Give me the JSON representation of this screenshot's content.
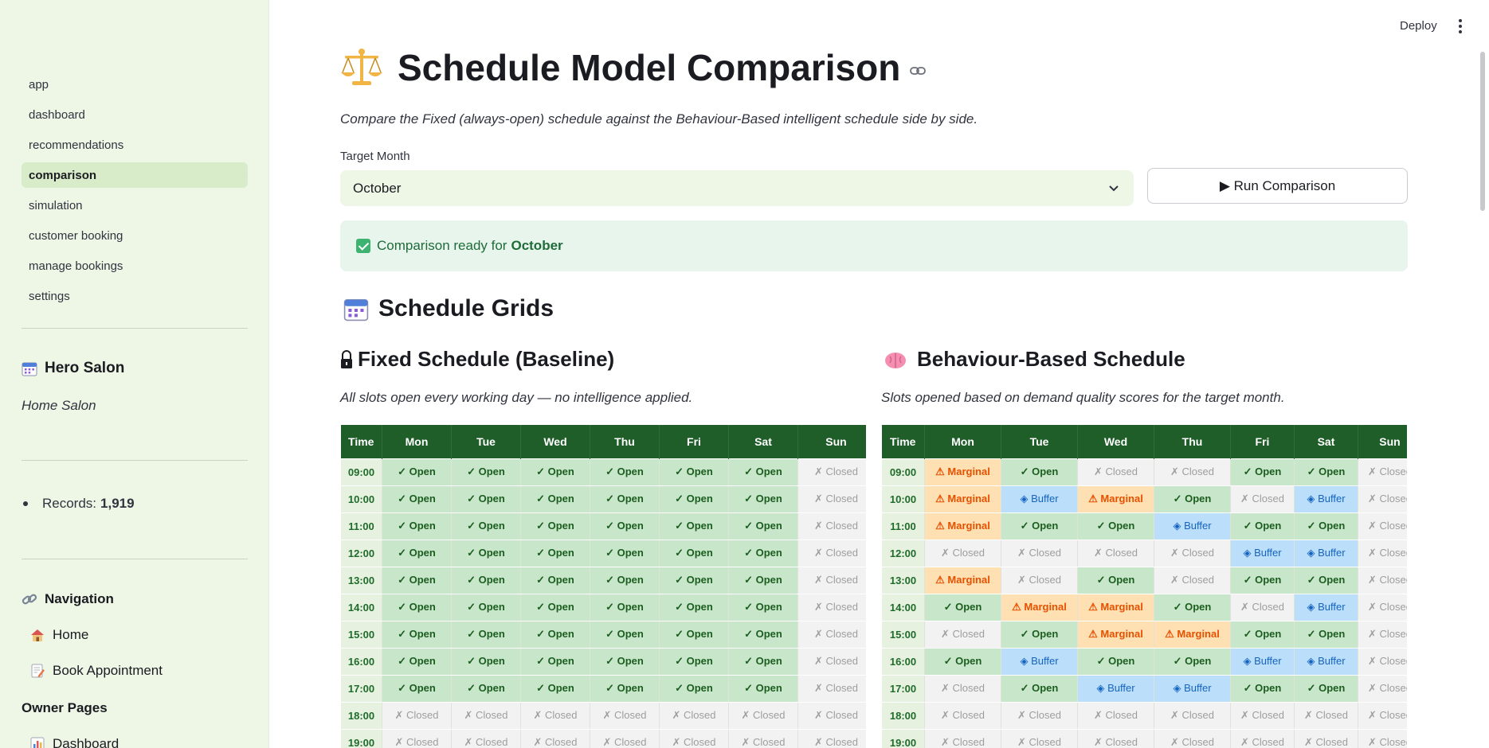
{
  "sidebar": {
    "pages": [
      {
        "label": "app",
        "active": false
      },
      {
        "label": "dashboard",
        "active": false
      },
      {
        "label": "recommendations",
        "active": false
      },
      {
        "label": "comparison",
        "active": true
      },
      {
        "label": "simulation",
        "active": false
      },
      {
        "label": "customer booking",
        "active": false
      },
      {
        "label": "manage bookings",
        "active": false
      },
      {
        "label": "settings",
        "active": false
      }
    ],
    "salon_name": "Hero Salon",
    "salon_subtitle": "Home Salon",
    "records_label": "Records:",
    "records_value": "1,919",
    "navigation_heading": "Navigation",
    "home_link": "Home",
    "book_link": "Book Appointment",
    "owner_heading": "Owner Pages",
    "dashboard_link": "Dashboard"
  },
  "topbar": {
    "deploy": "Deploy"
  },
  "main": {
    "title": "Schedule Model Comparison",
    "caption": "Compare the Fixed (always-open) schedule against the Behaviour-Based intelligent schedule side by side.",
    "month_label": "Target Month",
    "month_value": "October",
    "run_button": "▶ Run Comparison",
    "alert_text": "Comparison ready for",
    "alert_month": "October",
    "grids_heading": "Schedule Grids",
    "fixed": {
      "title": "Fixed Schedule (Baseline)",
      "subtitle": "All slots open every working day — no intelligence applied."
    },
    "behaviour": {
      "title": "Behaviour-Based Schedule",
      "subtitle": "Slots opened based on demand quality scores for the target month."
    }
  },
  "status_labels": {
    "Open": "✓ Open",
    "Closed": "✗ Closed",
    "Marginal": "⚠ Marginal",
    "Buffer": "◈ Buffer"
  },
  "grid_columns": [
    "Time",
    "Mon",
    "Tue",
    "Wed",
    "Thu",
    "Fri",
    "Sat",
    "Sun"
  ],
  "times": [
    "09:00",
    "10:00",
    "11:00",
    "12:00",
    "13:00",
    "14:00",
    "15:00",
    "16:00",
    "17:00",
    "18:00",
    "19:00"
  ],
  "fixed_grid": [
    [
      "Open",
      "Open",
      "Open",
      "Open",
      "Open",
      "Open",
      "Closed"
    ],
    [
      "Open",
      "Open",
      "Open",
      "Open",
      "Open",
      "Open",
      "Closed"
    ],
    [
      "Open",
      "Open",
      "Open",
      "Open",
      "Open",
      "Open",
      "Closed"
    ],
    [
      "Open",
      "Open",
      "Open",
      "Open",
      "Open",
      "Open",
      "Closed"
    ],
    [
      "Open",
      "Open",
      "Open",
      "Open",
      "Open",
      "Open",
      "Closed"
    ],
    [
      "Open",
      "Open",
      "Open",
      "Open",
      "Open",
      "Open",
      "Closed"
    ],
    [
      "Open",
      "Open",
      "Open",
      "Open",
      "Open",
      "Open",
      "Closed"
    ],
    [
      "Open",
      "Open",
      "Open",
      "Open",
      "Open",
      "Open",
      "Closed"
    ],
    [
      "Open",
      "Open",
      "Open",
      "Open",
      "Open",
      "Open",
      "Closed"
    ],
    [
      "Closed",
      "Closed",
      "Closed",
      "Closed",
      "Closed",
      "Closed",
      "Closed"
    ],
    [
      "Closed",
      "Closed",
      "Closed",
      "Closed",
      "Closed",
      "Closed",
      "Closed"
    ]
  ],
  "behaviour_grid": [
    [
      "Marginal",
      "Open",
      "Closed",
      "Closed",
      "Open",
      "Open",
      "Closed"
    ],
    [
      "Marginal",
      "Buffer",
      "Marginal",
      "Open",
      "Closed",
      "Buffer",
      "Closed"
    ],
    [
      "Marginal",
      "Open",
      "Open",
      "Buffer",
      "Open",
      "Open",
      "Closed"
    ],
    [
      "Closed",
      "Closed",
      "Closed",
      "Closed",
      "Buffer",
      "Buffer",
      "Closed"
    ],
    [
      "Marginal",
      "Closed",
      "Open",
      "Closed",
      "Open",
      "Open",
      "Closed"
    ],
    [
      "Open",
      "Marginal",
      "Marginal",
      "Open",
      "Closed",
      "Buffer",
      "Closed"
    ],
    [
      "Closed",
      "Open",
      "Marginal",
      "Marginal",
      "Open",
      "Open",
      "Closed"
    ],
    [
      "Open",
      "Buffer",
      "Open",
      "Open",
      "Buffer",
      "Buffer",
      "Closed"
    ],
    [
      "Closed",
      "Open",
      "Buffer",
      "Buffer",
      "Open",
      "Open",
      "Closed"
    ],
    [
      "Closed",
      "Closed",
      "Closed",
      "Closed",
      "Closed",
      "Closed",
      "Closed"
    ],
    [
      "Closed",
      "Closed",
      "Closed",
      "Closed",
      "Closed",
      "Closed",
      "Closed"
    ]
  ],
  "colors": {
    "sidebar_bg": "#eef6e6",
    "header_green": "#1f5e28",
    "open_bg": "#c8e6c9",
    "marginal_bg": "#ffe0b2",
    "buffer_bg": "#bbdefb",
    "closed_bg": "#f2f2f2"
  }
}
